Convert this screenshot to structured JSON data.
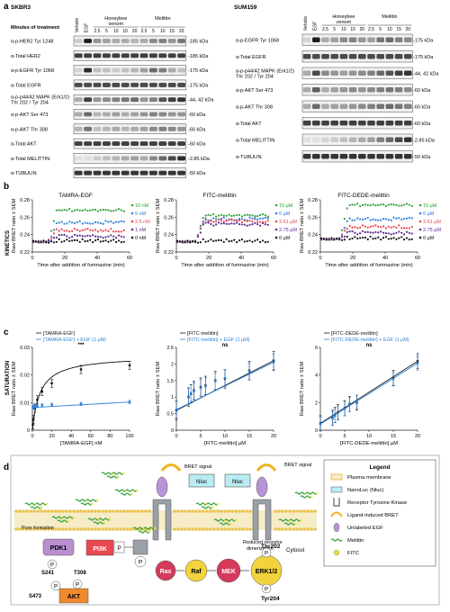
{
  "panels": {
    "a": "a",
    "b": "b",
    "c": "c",
    "d": "d"
  },
  "blots": {
    "left": {
      "cell_line": "SKBR3",
      "header": "Minutes of treatment",
      "vehicle": "Vehicle",
      "egf": "EGF",
      "group1": "Honeybee venom",
      "group2": "Melittin",
      "times": [
        "2.5",
        "5",
        "10",
        "15",
        "20",
        "2.5",
        "5",
        "10",
        "15",
        "20"
      ],
      "lane_count": 12,
      "rows": [
        {
          "label": "α-p-HER2 Tyr 1248",
          "kda": "185 kDa",
          "pattern": [
            0.15,
            0.95,
            0.4,
            0.35,
            0.3,
            0.3,
            0.25,
            0.3,
            0.45,
            0.5,
            0.4,
            0.55
          ]
        },
        {
          "label": "α-Total HER2",
          "kda": "185 kDa",
          "pattern": [
            0.8,
            0.8,
            0.8,
            0.8,
            0.8,
            0.8,
            0.8,
            0.8,
            0.8,
            0.8,
            0.8,
            0.8
          ]
        },
        {
          "label": "α-p-EGFR Tyr 1068",
          "kda": "175 kDa",
          "pattern": [
            0.1,
            0.9,
            0.2,
            0.2,
            0.15,
            0.2,
            0.25,
            0.35,
            0.6,
            0.5,
            0.3,
            0.2
          ]
        },
        {
          "label": "α-Total EGFR",
          "kda": "175 kDa",
          "pattern": [
            0.75,
            0.75,
            0.75,
            0.75,
            0.75,
            0.75,
            0.75,
            0.75,
            0.75,
            0.75,
            0.75,
            0.75
          ]
        },
        {
          "label": "α-p-p44/42 MAPK (Erk1/2) Thr 202 / Tyr 204",
          "kda": "44, 42 kDa",
          "pattern": [
            0.3,
            0.8,
            0.4,
            0.45,
            0.5,
            0.55,
            0.6,
            0.4,
            0.5,
            0.7,
            0.8,
            0.85
          ]
        },
        {
          "label": "α-p-AKT Ser 473",
          "kda": "60 kDa",
          "pattern": [
            0.3,
            0.6,
            0.25,
            0.3,
            0.35,
            0.3,
            0.35,
            0.4,
            0.5,
            0.45,
            0.4,
            0.4
          ]
        },
        {
          "label": "α-p-AKT Thr 308",
          "kda": "60 kDa",
          "pattern": [
            0.25,
            0.55,
            0.2,
            0.25,
            0.3,
            0.25,
            0.3,
            0.35,
            0.45,
            0.5,
            0.45,
            0.4
          ]
        },
        {
          "label": "α-Total AKT",
          "kda": "60 kDa",
          "pattern": [
            0.8,
            0.8,
            0.8,
            0.8,
            0.8,
            0.8,
            0.8,
            0.8,
            0.8,
            0.8,
            0.8,
            0.8
          ]
        },
        {
          "label": "α-Total MELITTIN",
          "kda": "2.85 kDa",
          "pattern": [
            0.05,
            0.05,
            0.15,
            0.2,
            0.25,
            0.3,
            0.35,
            0.3,
            0.45,
            0.6,
            0.75,
            0.9
          ]
        },
        {
          "label": "α-TUBULIN",
          "kda": "50 kDa",
          "pattern": [
            0.85,
            0.85,
            0.85,
            0.85,
            0.85,
            0.85,
            0.85,
            0.85,
            0.85,
            0.85,
            0.85,
            0.85
          ]
        }
      ]
    },
    "right": {
      "cell_line": "SUM159",
      "vehicle": "Vehicle",
      "egf": "EGF",
      "group1": "Honeybee venom",
      "group2": "Melittin",
      "times": [
        "2.5",
        "5",
        "10",
        "15",
        "20",
        "2.5",
        "5",
        "10",
        "15",
        "20"
      ],
      "lane_count": 12,
      "rows": [
        {
          "label": "α-p-EGFR Tyr 1068",
          "kda": "175 kDa",
          "pattern": [
            0.1,
            0.95,
            0.3,
            0.35,
            0.45,
            0.5,
            0.4,
            0.35,
            0.55,
            0.6,
            0.5,
            0.45
          ]
        },
        {
          "label": "α-Total EGFR",
          "kda": "175 kDa",
          "pattern": [
            0.75,
            0.75,
            0.75,
            0.75,
            0.75,
            0.75,
            0.75,
            0.75,
            0.75,
            0.75,
            0.75,
            0.75
          ]
        },
        {
          "label": "α-p-p44/42 MAPK (Erk1/2) Thr 202 / Tyr 204",
          "kda": "44, 42 kDa",
          "pattern": [
            0.3,
            0.75,
            0.45,
            0.4,
            0.35,
            0.4,
            0.45,
            0.5,
            0.6,
            0.7,
            0.8,
            0.85
          ]
        },
        {
          "label": "α-p-AKT Ser 473",
          "kda": "60 kDa",
          "pattern": [
            0.3,
            0.65,
            0.3,
            0.35,
            0.4,
            0.45,
            0.4,
            0.45,
            0.5,
            0.55,
            0.5,
            0.45
          ]
        },
        {
          "label": "α-p-AKT Thr 308",
          "kda": "60 kDa",
          "pattern": [
            0.3,
            0.6,
            0.3,
            0.35,
            0.35,
            0.4,
            0.45,
            0.5,
            0.55,
            0.6,
            0.55,
            0.5
          ]
        },
        {
          "label": "α-Total AKT",
          "kda": "60 kDa",
          "pattern": [
            0.8,
            0.8,
            0.8,
            0.8,
            0.8,
            0.8,
            0.8,
            0.8,
            0.8,
            0.8,
            0.8,
            0.8
          ]
        },
        {
          "label": "α-Total MELITTIN",
          "kda": "2.85 kDa",
          "pattern": [
            0.05,
            0.05,
            0.1,
            0.15,
            0.2,
            0.25,
            0.3,
            0.35,
            0.5,
            0.6,
            0.75,
            0.85
          ]
        },
        {
          "label": "α-TUBULIN",
          "kda": "50 kDa",
          "pattern": [
            0.85,
            0.85,
            0.85,
            0.85,
            0.85,
            0.85,
            0.85,
            0.85,
            0.85,
            0.85,
            0.85,
            0.85
          ]
        }
      ]
    }
  },
  "row_labels": {
    "kinetics": "KINETICS",
    "saturation": "SATURATION"
  },
  "chart_data": [
    {
      "type": "scatter",
      "title": "TAMRA-EGF",
      "xlabel": "Time after addition of furimazine (min)",
      "ylabel": "Raw BRET ratio ± SEM",
      "xlim": [
        0,
        60
      ],
      "ylim": [
        0.22,
        0.28
      ],
      "xticks": [
        "0",
        "20",
        "40",
        "60"
      ],
      "yticks": [
        "0.22",
        "0.24",
        "0.26",
        "0.28"
      ],
      "series": [
        {
          "name": "10 nM",
          "color": "#2e9e3a",
          "inject": 10,
          "base": 0.232,
          "plateau": 0.268
        },
        {
          "name": "5 nM",
          "color": "#2f7fd6",
          "inject": 10,
          "base": 0.232,
          "plateau": 0.254
        },
        {
          "name": "2.5 nM",
          "color": "#e8484f",
          "inject": 10,
          "base": 0.232,
          "plateau": 0.245
        },
        {
          "name": "1 nM",
          "color": "#5b2b8c",
          "inject": 10,
          "base": 0.232,
          "plateau": 0.238
        },
        {
          "name": "0 nM",
          "color": "#111111",
          "inject": 10,
          "base": 0.232,
          "plateau": 0.233
        }
      ]
    },
    {
      "type": "scatter",
      "title": "FITC-melittin",
      "xlabel": "Time after addition of furimazine (min)",
      "ylabel": "Raw BRET ratio ± SEM",
      "xlim": [
        0,
        60
      ],
      "ylim": [
        0.22,
        0.28
      ],
      "xticks": [
        "0",
        "20",
        "40",
        "60"
      ],
      "yticks": [
        "0.22",
        "0.24",
        "0.26",
        "0.28"
      ],
      "series": [
        {
          "name": "15 µM",
          "color": "#2e9e3a",
          "inject": 12,
          "base": 0.232,
          "plateau": 0.262
        },
        {
          "name": "6 µM",
          "color": "#2f7fd6",
          "inject": 12,
          "base": 0.232,
          "plateau": 0.258
        },
        {
          "name": "3.61 µM",
          "color": "#e8484f",
          "inject": 12,
          "base": 0.232,
          "plateau": 0.256
        },
        {
          "name": "2.75 µM",
          "color": "#5b2b8c",
          "inject": 12,
          "base": 0.232,
          "plateau": 0.252
        },
        {
          "name": "0 µM",
          "color": "#111111",
          "inject": 12,
          "base": 0.232,
          "plateau": 0.233
        }
      ]
    },
    {
      "type": "scatter",
      "title": "FITC-DEDE-melittin",
      "xlabel": "Time after addition of furimazine (min)",
      "ylabel": "Raw BRET ratio ± SEM",
      "xlim": [
        0,
        60
      ],
      "ylim": [
        0.22,
        0.28
      ],
      "xticks": [
        "0",
        "20",
        "40",
        "60"
      ],
      "yticks": [
        "0.22",
        "0.24",
        "0.26",
        "0.28"
      ],
      "series": [
        {
          "name": "15 µM",
          "color": "#2e9e3a",
          "inject": 12,
          "base": 0.235,
          "plateau": 0.274
        },
        {
          "name": "6 µM",
          "color": "#2f7fd6",
          "inject": 12,
          "base": 0.235,
          "plateau": 0.258
        },
        {
          "name": "3.61 µM",
          "color": "#e8484f",
          "inject": 12,
          "base": 0.235,
          "plateau": 0.249
        },
        {
          "name": "2.75 µM",
          "color": "#5b2b8c",
          "inject": 12,
          "base": 0.235,
          "plateau": 0.242
        },
        {
          "name": "0 µM",
          "color": "#111111",
          "inject": 12,
          "base": 0.235,
          "plateau": 0.236
        }
      ]
    },
    {
      "type": "scatter",
      "xlabel": "[TAMRA-EGF] nM",
      "ylabel": "Raw BRET ratio ± SEM",
      "xlim": [
        0,
        100
      ],
      "ylim": [
        0,
        0.03
      ],
      "xticks": [
        "0",
        "20",
        "40",
        "60",
        "80",
        "100"
      ],
      "yticks": [
        "0",
        "0.01",
        "0.02",
        "0.03"
      ],
      "significance": "***",
      "series": [
        {
          "name": "[TAMRA-EGF]",
          "color": "#111111",
          "points": [
            [
              0.5,
              0.002
            ],
            [
              1,
              0.004
            ],
            [
              2.5,
              0.008
            ],
            [
              5,
              0.011
            ],
            [
              10,
              0.014
            ],
            [
              20,
              0.017
            ],
            [
              50,
              0.022
            ],
            [
              100,
              0.0235
            ]
          ],
          "err": 0.0015
        },
        {
          "name": "[TAMRA-EGF] + EGF (1 µM)",
          "color": "#2f7fd6",
          "points": [
            [
              0.5,
              0.0082
            ],
            [
              1,
              0.0084
            ],
            [
              2.5,
              0.0086
            ],
            [
              5,
              0.0088
            ],
            [
              10,
              0.009
            ],
            [
              20,
              0.0092
            ],
            [
              50,
              0.0095
            ],
            [
              100,
              0.0102
            ]
          ],
          "err": 0.0006
        }
      ]
    },
    {
      "type": "scatter",
      "xlabel": "[FITC-melittin] µM",
      "ylabel": "Raw BRET ratio ± SEM",
      "xlim": [
        0,
        20
      ],
      "ylim": [
        0,
        2.5
      ],
      "xticks": [
        "0",
        "5",
        "10",
        "15",
        "20"
      ],
      "yticks": [
        "0",
        "0.5",
        "1",
        "1.5",
        "2",
        "2.5"
      ],
      "significance": "ns",
      "series": [
        {
          "name": "[FITC-melittin]",
          "color": "#111111",
          "points": [
            [
              0,
              0.6
            ],
            [
              2.5,
              1.0
            ],
            [
              3,
              1.1
            ],
            [
              3.6,
              1.2
            ],
            [
              5,
              1.3
            ],
            [
              6,
              1.35
            ],
            [
              8,
              1.5
            ],
            [
              10,
              1.55
            ],
            [
              15,
              1.8
            ],
            [
              20,
              2.1
            ]
          ],
          "err": 0.28
        },
        {
          "name": "[FITC-melittin] + EGF (1 µM)",
          "color": "#2f7fd6",
          "points": [
            [
              0,
              0.62
            ],
            [
              2.5,
              1.02
            ],
            [
              3,
              1.12
            ],
            [
              3.6,
              1.18
            ],
            [
              5,
              1.28
            ],
            [
              6,
              1.33
            ],
            [
              8,
              1.48
            ],
            [
              10,
              1.57
            ],
            [
              15,
              1.78
            ],
            [
              20,
              2.05
            ]
          ],
          "err": 0.25
        }
      ]
    },
    {
      "type": "scatter",
      "xlabel": "[FITC-DEDE-melittin] µM",
      "ylabel": "Raw BRET ratio ± SEM",
      "xlim": [
        0,
        20
      ],
      "ylim": [
        0,
        6
      ],
      "xticks": [
        "0",
        "5",
        "10",
        "15",
        "20"
      ],
      "yticks": [
        "0",
        "2",
        "4",
        "6"
      ],
      "significance": "ns",
      "series": [
        {
          "name": "[FITC-DEDE-melittin]",
          "color": "#111111",
          "points": [
            [
              0,
              0.5
            ],
            [
              2.5,
              0.9
            ],
            [
              3,
              1.1
            ],
            [
              3.6,
              1.3
            ],
            [
              5,
              1.6
            ],
            [
              6,
              1.9
            ],
            [
              7.5,
              2.0
            ],
            [
              15,
              3.8
            ],
            [
              20,
              5.0
            ]
          ],
          "err": 0.55
        },
        {
          "name": "[FITC-DEDE-melittin] + EGF (1 µM)",
          "color": "#2f7fd6",
          "points": [
            [
              0,
              0.45
            ],
            [
              2.5,
              0.85
            ],
            [
              3,
              1.05
            ],
            [
              3.6,
              1.25
            ],
            [
              5,
              1.55
            ],
            [
              6,
              1.85
            ],
            [
              7.5,
              2.05
            ],
            [
              15,
              3.7
            ],
            [
              20,
              4.85
            ]
          ],
          "err": 0.5
        }
      ]
    }
  ],
  "diagram": {
    "bret_signal_1": "BRET signal",
    "bret_signal_2": "BRET signal",
    "nluc": "Nluc",
    "pore_formation": "Pore formation",
    "reduced_dimerization": "Reduced receptor\ndimerization",
    "cytosol": "Cytosol",
    "nodes": {
      "pdk1": "PDK1",
      "pi3k": "PI3K",
      "p": "P",
      "ras": "Ras",
      "raf": "Raf",
      "mek": "MEK",
      "erk": "ERK1/2",
      "akt": "AKT"
    },
    "sites": {
      "s241": "S241",
      "t308": "T308",
      "s473": "S473",
      "thr202": "Thr202",
      "tyr204": "Tyr204"
    },
    "legend": {
      "title": "Legend",
      "items": [
        {
          "label": "Plasma membrane",
          "icon": "membrane-icon"
        },
        {
          "label": "NanoLuc (Nluc)",
          "icon": "nluc-icon"
        },
        {
          "label": "Receptor Tyrosine Kinase",
          "icon": "receptor-icon"
        },
        {
          "label": "Ligand-induced BRET",
          "icon": "bret-arc-icon"
        },
        {
          "label": "Unlabeled EGF",
          "icon": "egf-icon"
        },
        {
          "label": "Melittin",
          "icon": "melittin-icon"
        },
        {
          "label": "FITC",
          "icon": "fitc-icon"
        }
      ]
    },
    "colors": {
      "green": "#2e9e3a",
      "pdk1": "#b98fd0",
      "pi3k": "#e8484f",
      "ras": "#d43a5a",
      "raf": "#f2d23d",
      "mek": "#d43a5a",
      "erk": "#f2d23d",
      "akt": "#ef8a2d",
      "nluc": "#b8ecf2",
      "membrane": "#e9c24f"
    }
  }
}
